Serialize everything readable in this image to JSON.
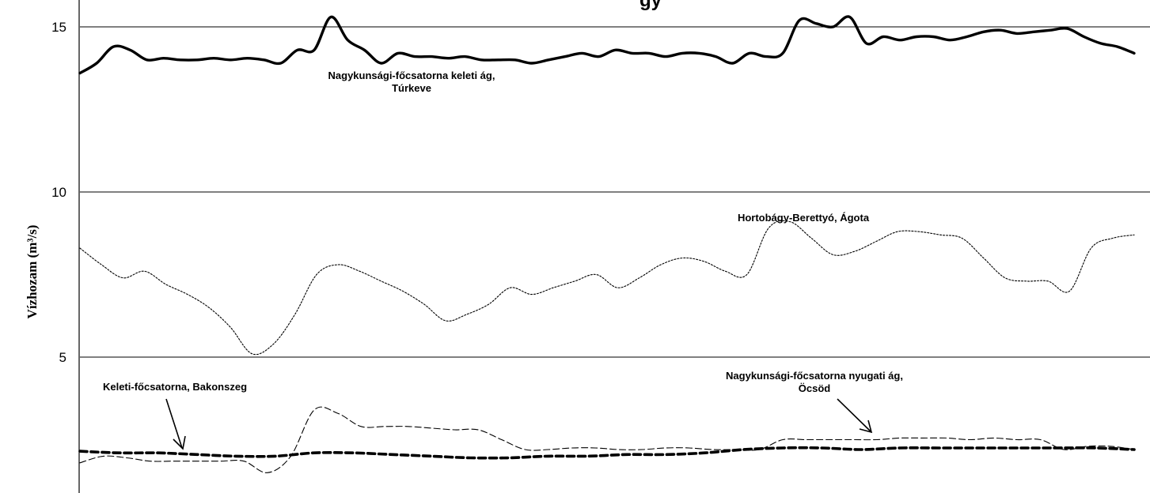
{
  "chart_data": {
    "type": "line",
    "title_fragment": "gy",
    "ylabel": "Vízhozam (m³/s)",
    "ylim": [
      0,
      16
    ],
    "yticks": [
      5,
      10,
      15
    ],
    "grid": true,
    "series": [
      {
        "name": "Nagykunsági-főcsatorna keleti ág, Túrkeve",
        "style": "solid",
        "values": [
          13.6,
          13.9,
          14.4,
          14.3,
          14.0,
          14.05,
          14.0,
          14.0,
          14.05,
          14.0,
          14.05,
          14.0,
          13.9,
          14.3,
          14.3,
          15.3,
          14.6,
          14.3,
          13.9,
          14.2,
          14.1,
          14.1,
          14.05,
          14.1,
          14.0,
          14.0,
          14.0,
          13.9,
          14.0,
          14.1,
          14.2,
          14.1,
          14.3,
          14.2,
          14.2,
          14.1,
          14.2,
          14.2,
          14.1,
          13.9,
          14.2,
          14.1,
          14.2,
          15.2,
          15.1,
          15.0,
          15.3,
          14.5,
          14.7,
          14.6,
          14.7,
          14.7,
          14.6,
          14.7,
          14.85,
          14.9,
          14.8,
          14.85,
          14.9,
          14.95,
          14.7,
          14.5,
          14.4,
          14.2
        ]
      },
      {
        "name": "Hortobágy-Berettyó, Ágota",
        "style": "dotted",
        "values": [
          8.3,
          7.8,
          7.4,
          7.6,
          7.2,
          6.9,
          6.5,
          5.9,
          5.1,
          5.4,
          6.3,
          7.5,
          7.8,
          7.6,
          7.3,
          7.0,
          6.6,
          6.1,
          6.3,
          6.6,
          7.1,
          6.9,
          7.1,
          7.3,
          7.5,
          7.1,
          7.4,
          7.8,
          8.0,
          7.9,
          7.6,
          7.5,
          8.9,
          9.1,
          8.6,
          8.1,
          8.2,
          8.5,
          8.8,
          8.8,
          8.7,
          8.6,
          8.0,
          7.4,
          7.3,
          7.3,
          7.0,
          8.3,
          8.6,
          8.7
        ]
      },
      {
        "name": "Nagykunsági-főcsatorna nyugati ág, Öcsöd",
        "style": "dashed",
        "values": [
          1.8,
          2.0,
          1.95,
          1.85,
          1.85,
          1.85,
          1.85,
          1.85,
          1.5,
          2.0,
          3.4,
          3.3,
          2.9,
          2.9,
          2.9,
          2.85,
          2.8,
          2.8,
          2.5,
          2.2,
          2.2,
          2.25,
          2.25,
          2.2,
          2.2,
          2.25,
          2.25,
          2.2,
          2.2,
          2.2,
          2.5,
          2.5,
          2.5,
          2.5,
          2.5,
          2.55,
          2.55,
          2.55,
          2.5,
          2.55,
          2.5,
          2.5,
          2.2,
          2.3,
          2.3,
          2.2
        ]
      },
      {
        "name": "Keleti-főcsatorna, Bakonszeg",
        "style": "heavy-dashed",
        "values": [
          2.15,
          2.1,
          2.1,
          2.05,
          2.0,
          2.0,
          2.1,
          2.1,
          2.05,
          2.0,
          1.95,
          1.95,
          2.0,
          2.0,
          2.05,
          2.05,
          2.1,
          2.2,
          2.25,
          2.25,
          2.2,
          2.25,
          2.25,
          2.25,
          2.25,
          2.25,
          2.25,
          2.2
        ]
      }
    ],
    "annotations": [
      {
        "lines": [
          "Nagykunsági-főcsatorna keleti ág,",
          "Túrkeve"
        ]
      },
      {
        "lines": [
          "Hortobágy-Berettyó, Ágota"
        ]
      },
      {
        "lines": [
          "Keleti-főcsatorna, Bakonszeg"
        ]
      },
      {
        "lines": [
          "Nagykunsági-főcsatorna nyugati ág,",
          "Öcsöd"
        ]
      }
    ]
  }
}
